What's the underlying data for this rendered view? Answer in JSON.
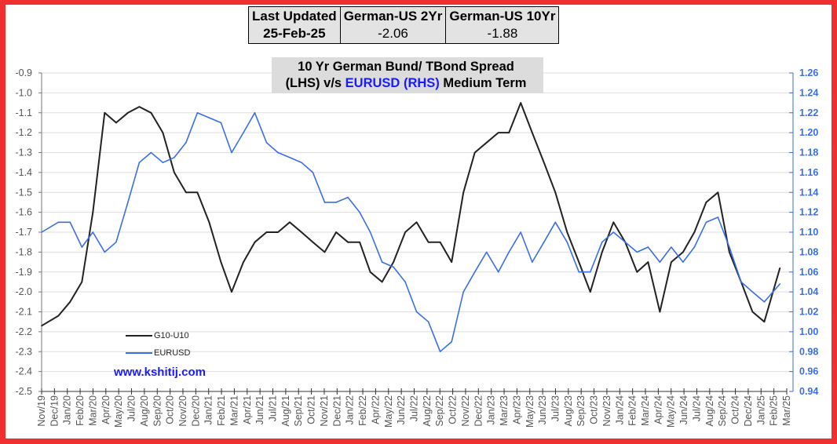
{
  "info_table": {
    "headers": [
      "Last Updated",
      "German-US 2Yr",
      "German-US 10Yr"
    ],
    "values": [
      "25-Feb-25",
      "-2.06",
      "-1.88"
    ]
  },
  "title": {
    "line1": "10 Yr German Bund/ TBond Spread",
    "line2_a": "(LHS) v/s ",
    "line2_b": "EURUSD",
    "line2_c": " (RHS)",
    "line2_d": " Medium Term"
  },
  "website": "www.kshitij.com",
  "chart_data": {
    "type": "line",
    "title": "10 Yr German Bund/ TBond Spread (LHS) v/s EURUSD (RHS) Medium Term",
    "legend_position": "bottom-left",
    "grid": true,
    "x_range": [
      "2019-11-01",
      "2025-03-15"
    ],
    "x_tick_labels": [
      "Nov/19",
      "Dec/19",
      "Jan/20",
      "Feb/20",
      "Mar/20",
      "Apr/20",
      "May/20",
      "Jul/20",
      "Aug/20",
      "Sep/20",
      "Oct/20",
      "Nov/20",
      "Dec/20",
      "Jan/21",
      "Feb/21",
      "Mar/21",
      "Apr/21",
      "Jun/21",
      "Jul/21",
      "Aug/21",
      "Sep/21",
      "Oct/21",
      "Nov/21",
      "Dec/21",
      "Jan/22",
      "Feb/22",
      "Apr/22",
      "May/22",
      "Jun/22",
      "Jul/22",
      "Aug/22",
      "Sep/22",
      "Oct/22",
      "Nov/22",
      "Dec/22",
      "Jan/23",
      "Mar/23",
      "Apr/23",
      "May/23",
      "Jun/23",
      "Jul/23",
      "Aug/23",
      "Sep/23",
      "Oct/23",
      "Nov/23",
      "Jan/24",
      "Feb/24",
      "Mar/24",
      "Apr/24",
      "May/24",
      "Jun/24",
      "Jul/24",
      "Aug/24",
      "Sep/24",
      "Oct/24",
      "Dec/24",
      "Jan/25",
      "Feb/25",
      "Mar/25"
    ],
    "y_left": {
      "range": [
        -2.5,
        -0.9
      ],
      "step": 0.1,
      "ticks": [
        "-0.9",
        "-1.0",
        "-1.1",
        "-1.2",
        "-1.3",
        "-1.4",
        "-1.5",
        "-1.6",
        "-1.7",
        "-1.8",
        "-1.9",
        "-2.0",
        "-2.1",
        "-2.2",
        "-2.3",
        "-2.4",
        "-2.5"
      ]
    },
    "y_right": {
      "range": [
        0.94,
        1.26
      ],
      "step": 0.02,
      "ticks": [
        "1.26",
        "1.24",
        "1.22",
        "1.20",
        "1.18",
        "1.16",
        "1.14",
        "1.12",
        "1.10",
        "1.08",
        "1.06",
        "1.04",
        "1.02",
        "1.00",
        "0.98",
        "0.96",
        "0.94"
      ]
    },
    "x": [
      "2019-11",
      "2019-12",
      "2020-01",
      "2020-02",
      "2020-03",
      "2020-04",
      "2020-05",
      "2020-06",
      "2020-07",
      "2020-08",
      "2020-09",
      "2020-10",
      "2020-11",
      "2020-12",
      "2021-01",
      "2021-02",
      "2021-03",
      "2021-04",
      "2021-05",
      "2021-06",
      "2021-07",
      "2021-08",
      "2021-09",
      "2021-10",
      "2021-11",
      "2021-12",
      "2022-01",
      "2022-02",
      "2022-03",
      "2022-04",
      "2022-05",
      "2022-06",
      "2022-07",
      "2022-08",
      "2022-09",
      "2022-10",
      "2022-11",
      "2022-12",
      "2023-01",
      "2023-02",
      "2023-03",
      "2023-04",
      "2023-05",
      "2023-06",
      "2023-07",
      "2023-08",
      "2023-09",
      "2023-10",
      "2023-11",
      "2023-12",
      "2024-01",
      "2024-02",
      "2024-03",
      "2024-04",
      "2024-05",
      "2024-06",
      "2024-07",
      "2024-08",
      "2024-09",
      "2024-10",
      "2024-11",
      "2024-12",
      "2025-01",
      "2025-02-25"
    ],
    "series": [
      {
        "name": "G10-U10",
        "axis": "left",
        "color": "#222222",
        "values": [
          -2.17,
          -2.12,
          -2.05,
          -1.95,
          -1.6,
          -1.1,
          -1.15,
          -1.1,
          -1.07,
          -1.1,
          -1.2,
          -1.4,
          -1.5,
          -1.5,
          -1.65,
          -1.85,
          -2.0,
          -1.85,
          -1.75,
          -1.7,
          -1.7,
          -1.65,
          -1.7,
          -1.75,
          -1.8,
          -1.7,
          -1.75,
          -1.75,
          -1.9,
          -1.95,
          -1.85,
          -1.7,
          -1.65,
          -1.75,
          -1.75,
          -1.85,
          -1.5,
          -1.3,
          -1.25,
          -1.2,
          -1.2,
          -1.05,
          -1.2,
          -1.35,
          -1.5,
          -1.7,
          -1.85,
          -2.0,
          -1.8,
          -1.65,
          -1.75,
          -1.9,
          -1.85,
          -2.1,
          -1.85,
          -1.8,
          -1.7,
          -1.55,
          -1.5,
          -1.8,
          -1.95,
          -2.1,
          -2.15,
          -1.88
        ]
      },
      {
        "name": "EURUSD",
        "axis": "right",
        "color": "#3a6ee8",
        "values": [
          1.1,
          1.11,
          1.11,
          1.085,
          1.1,
          1.08,
          1.09,
          1.13,
          1.17,
          1.18,
          1.17,
          1.175,
          1.19,
          1.22,
          1.215,
          1.21,
          1.18,
          1.2,
          1.22,
          1.19,
          1.18,
          1.175,
          1.17,
          1.16,
          1.13,
          1.13,
          1.135,
          1.12,
          1.1,
          1.07,
          1.065,
          1.05,
          1.02,
          1.01,
          0.98,
          0.99,
          1.04,
          1.06,
          1.08,
          1.06,
          1.08,
          1.1,
          1.07,
          1.09,
          1.11,
          1.09,
          1.06,
          1.06,
          1.09,
          1.1,
          1.09,
          1.08,
          1.085,
          1.07,
          1.085,
          1.07,
          1.085,
          1.11,
          1.115,
          1.085,
          1.05,
          1.04,
          1.03,
          1.048
        ]
      }
    ]
  }
}
